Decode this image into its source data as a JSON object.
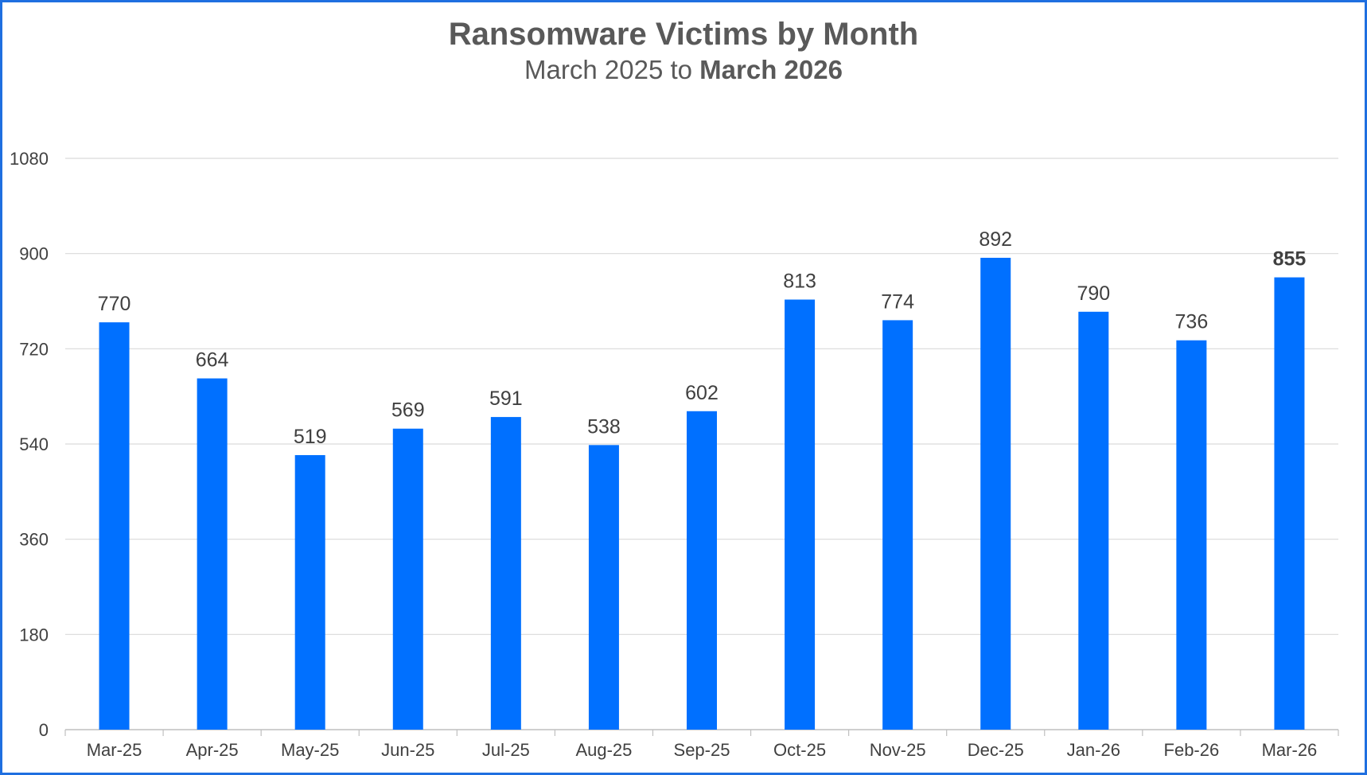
{
  "chart_data": {
    "type": "bar",
    "title": "Ransomware Victims by Month",
    "subtitle_prefix": "March 2025 to ",
    "subtitle_bold": "March 2026",
    "categories": [
      "Mar-25",
      "Apr-25",
      "May-25",
      "Jun-25",
      "Jul-25",
      "Aug-25",
      "Sep-25",
      "Oct-25",
      "Nov-25",
      "Dec-25",
      "Jan-26",
      "Feb-26",
      "Mar-26"
    ],
    "values": [
      770,
      664,
      519,
      569,
      591,
      538,
      602,
      813,
      774,
      892,
      790,
      736,
      855
    ],
    "highlight_index": 12,
    "ylim": [
      0,
      1080
    ],
    "yticks": [
      0,
      180,
      360,
      540,
      720,
      900,
      1080
    ],
    "grid": true,
    "xlabel": "",
    "ylabel": "",
    "bar_color": "#0070ff",
    "border_color": "#1f6fe0"
  }
}
